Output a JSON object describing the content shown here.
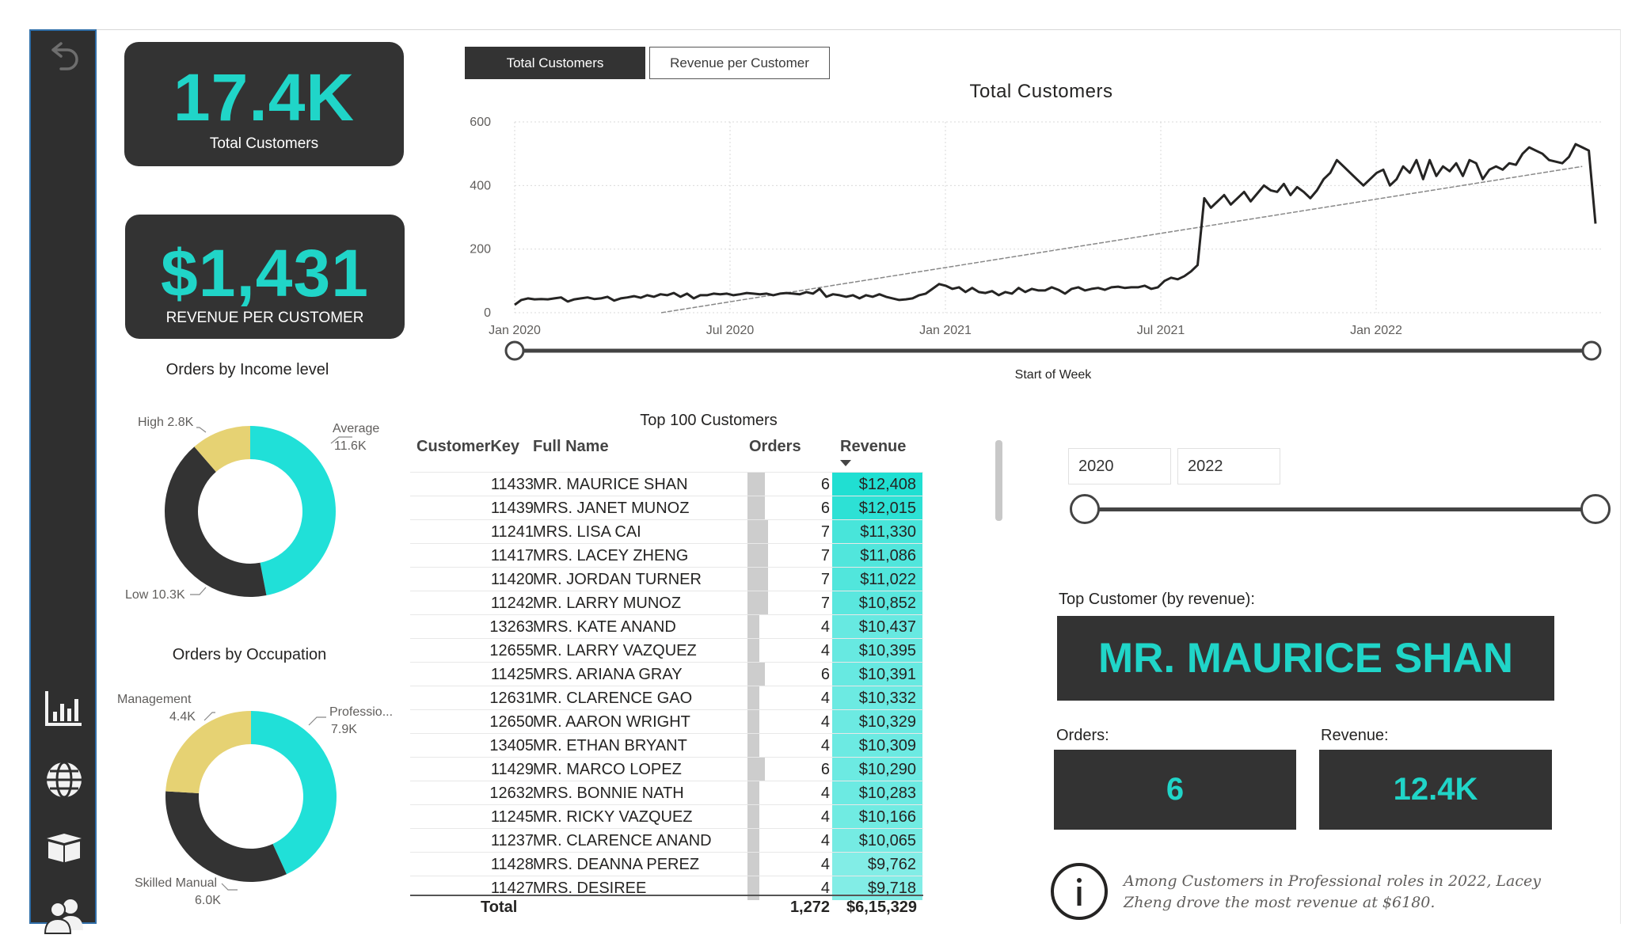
{
  "kpis": {
    "total_customers_value": "17.4K",
    "total_customers_label": "Total Customers",
    "revenue_per_customer_value": "$1,431",
    "revenue_per_customer_label": "REVENUE PER CUSTOMER"
  },
  "toggle": {
    "active_label": "Total Customers",
    "inactive_label": "Revenue per Customer"
  },
  "line_chart": {
    "title": "Total Customers",
    "x_axis_title": "Start of Week",
    "y_ticks": [
      "600",
      "400",
      "200",
      "0"
    ],
    "x_ticks": [
      "Jan 2020",
      "Jul 2020",
      "Jan 2021",
      "Jul 2021",
      "Jan 2022"
    ]
  },
  "chart_data": [
    {
      "type": "line",
      "title": "Total Customers",
      "xlabel": "Start of Week",
      "ylabel": "",
      "ylim": [
        0,
        600
      ],
      "x_range": [
        "2020-01",
        "2022-06"
      ],
      "series": [
        {
          "values": [
            25,
            40,
            45,
            42,
            43,
            42,
            45,
            48,
            35,
            42,
            45,
            48,
            43,
            45,
            50,
            38,
            45,
            48,
            52,
            47,
            55,
            50,
            58,
            55,
            62,
            50,
            60,
            45,
            55,
            55,
            60,
            58,
            60,
            55,
            58,
            62,
            60,
            58,
            60,
            55,
            60,
            62,
            60,
            58,
            65,
            60,
            75,
            50,
            58,
            55,
            50,
            55,
            45,
            55,
            50,
            58,
            50,
            45,
            40,
            42,
            45,
            55,
            60,
            75,
            90,
            85,
            75,
            80,
            65,
            78,
            65,
            62,
            68,
            55,
            65,
            60,
            78,
            65,
            75,
            70,
            70,
            80,
            72,
            60,
            75,
            80,
            70,
            75,
            78,
            72,
            80,
            82,
            78,
            80,
            80,
            85,
            75,
            80,
            100,
            110,
            105,
            115,
            130,
            150,
            360,
            330,
            350,
            370,
            340,
            360,
            380,
            350,
            375,
            400,
            385,
            380,
            405,
            370,
            395,
            380,
            360,
            385,
            420,
            440,
            480,
            460,
            440,
            420,
            400,
            420,
            440,
            450,
            400,
            420,
            460,
            440,
            480,
            420,
            480,
            430,
            460,
            445,
            470,
            430,
            480,
            470,
            420,
            450,
            460,
            450,
            470,
            465,
            500,
            520,
            510,
            500,
            480,
            475,
            470,
            490,
            530,
            520,
            510,
            280
          ]
        },
        {
          "name": "Trend",
          "start": [
            0,
            -10
          ],
          "end": [
            1,
            460
          ]
        }
      ]
    },
    {
      "type": "pie",
      "title": "Orders by Income level",
      "categories": [
        "Average",
        "Low",
        "High"
      ],
      "values": [
        11.6,
        10.3,
        2.8
      ],
      "value_labels": [
        "11.6K",
        "10.3K",
        "2.8K"
      ],
      "colors": [
        "#20e0d8",
        "#333333",
        "#e6d273"
      ]
    },
    {
      "type": "pie",
      "title": "Orders by Occupation",
      "categories": [
        "Professio...",
        "Skilled Manual",
        "Management"
      ],
      "values": [
        7.9,
        6.0,
        4.4
      ],
      "value_labels": [
        "7.9K",
        "6.0K",
        "4.4K"
      ],
      "colors": [
        "#20e0d8",
        "#333333",
        "#e6d273"
      ]
    }
  ],
  "income_donut": {
    "title": "Orders by Income level",
    "labels": {
      "high": "High 2.8K",
      "average_name": "Average",
      "average_value": "11.6K",
      "low": "Low 10.3K"
    }
  },
  "occupation_donut": {
    "title": "Orders by Occupation",
    "labels": {
      "management_name": "Management",
      "management_value": "4.4K",
      "professional_name": "Professio...",
      "professional_value": "7.9K",
      "skilled_name": "Skilled Manual",
      "skilled_value": "6.0K"
    }
  },
  "table": {
    "title": "Top 100 Customers",
    "headers": [
      "CustomerKey",
      "Full Name",
      "Orders",
      "Revenue"
    ],
    "rows": [
      {
        "key": "11433",
        "name": "MR. MAURICE SHAN",
        "orders": "6",
        "revenue": "$12,408",
        "orders_n": 6,
        "revenue_n": 12408
      },
      {
        "key": "11439",
        "name": "MRS. JANET MUNOZ",
        "orders": "6",
        "revenue": "$12,015",
        "orders_n": 6,
        "revenue_n": 12015
      },
      {
        "key": "11241",
        "name": "MRS. LISA CAI",
        "orders": "7",
        "revenue": "$11,330",
        "orders_n": 7,
        "revenue_n": 11330
      },
      {
        "key": "11417",
        "name": "MRS. LACEY ZHENG",
        "orders": "7",
        "revenue": "$11,086",
        "orders_n": 7,
        "revenue_n": 11086
      },
      {
        "key": "11420",
        "name": "MR. JORDAN TURNER",
        "orders": "7",
        "revenue": "$11,022",
        "orders_n": 7,
        "revenue_n": 11022
      },
      {
        "key": "11242",
        "name": "MR. LARRY MUNOZ",
        "orders": "7",
        "revenue": "$10,852",
        "orders_n": 7,
        "revenue_n": 10852
      },
      {
        "key": "13263",
        "name": "MRS. KATE ANAND",
        "orders": "4",
        "revenue": "$10,437",
        "orders_n": 4,
        "revenue_n": 10437
      },
      {
        "key": "12655",
        "name": "MR. LARRY VAZQUEZ",
        "orders": "4",
        "revenue": "$10,395",
        "orders_n": 4,
        "revenue_n": 10395
      },
      {
        "key": "11425",
        "name": "MRS. ARIANA GRAY",
        "orders": "6",
        "revenue": "$10,391",
        "orders_n": 6,
        "revenue_n": 10391
      },
      {
        "key": "12631",
        "name": "MR. CLARENCE GAO",
        "orders": "4",
        "revenue": "$10,332",
        "orders_n": 4,
        "revenue_n": 10332
      },
      {
        "key": "12650",
        "name": "MR. AARON WRIGHT",
        "orders": "4",
        "revenue": "$10,329",
        "orders_n": 4,
        "revenue_n": 10329
      },
      {
        "key": "13405",
        "name": "MR. ETHAN BRYANT",
        "orders": "4",
        "revenue": "$10,309",
        "orders_n": 4,
        "revenue_n": 10309
      },
      {
        "key": "11429",
        "name": "MR. MARCO LOPEZ",
        "orders": "6",
        "revenue": "$10,290",
        "orders_n": 6,
        "revenue_n": 10290
      },
      {
        "key": "12632",
        "name": "MRS. BONNIE NATH",
        "orders": "4",
        "revenue": "$10,283",
        "orders_n": 4,
        "revenue_n": 10283
      },
      {
        "key": "11245",
        "name": "MR. RICKY VAZQUEZ",
        "orders": "4",
        "revenue": "$10,166",
        "orders_n": 4,
        "revenue_n": 10166
      },
      {
        "key": "11237",
        "name": "MR. CLARENCE ANAND",
        "orders": "4",
        "revenue": "$10,065",
        "orders_n": 4,
        "revenue_n": 10065
      },
      {
        "key": "11428",
        "name": "MRS. DEANNA PEREZ",
        "orders": "4",
        "revenue": "$9,762",
        "orders_n": 4,
        "revenue_n": 9762
      },
      {
        "key": "11427",
        "name": "MRS. DESIREE",
        "orders": "4",
        "revenue": "$9,718",
        "orders_n": 4,
        "revenue_n": 9718
      }
    ],
    "total_label": "Total",
    "total_orders": "1,272",
    "total_revenue": "$6,15,329"
  },
  "year_slicer": {
    "start": "2020",
    "end": "2022"
  },
  "top_customer": {
    "label": "Top Customer (by revenue):",
    "name": "MR. MAURICE SHAN",
    "orders_label": "Orders:",
    "orders_value": "6",
    "revenue_label": "Revenue:",
    "revenue_value": "12.4K"
  },
  "insight": {
    "text": "Among Customers in Professional roles in 2022, Lacey Zheng drove the most revenue at $6180."
  },
  "colors": {
    "accent": "#20d5c8",
    "dark": "#333333",
    "yellow": "#e6d273",
    "sidebar": "#2f2f2f"
  },
  "icons": [
    "back-arrow-icon",
    "bar-chart-icon",
    "globe-icon",
    "box-icon",
    "users-icon",
    "info-icon",
    "sort-descending-icon"
  ]
}
